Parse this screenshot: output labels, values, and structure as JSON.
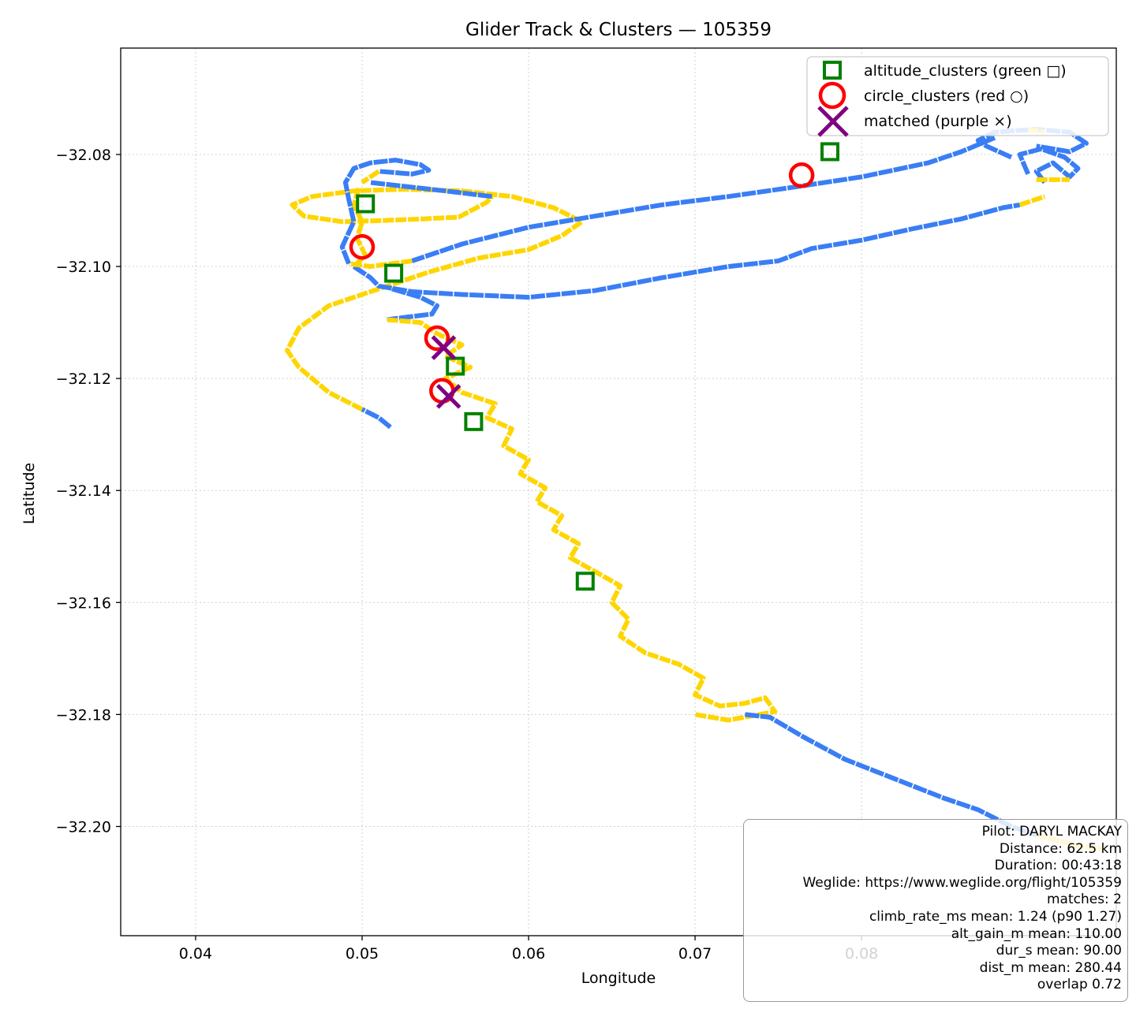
{
  "chart_data": {
    "type": "line",
    "title": "Glider Track & Clusters — 105359",
    "xlabel": "Longitude",
    "ylabel": "Latitude",
    "xlim": [
      0.0355,
      0.0953
    ],
    "ylim": [
      -32.2195,
      -32.061
    ],
    "xticks": [
      0.04,
      0.05,
      0.06,
      0.07,
      0.08
    ],
    "xtick_labels": [
      "0.04",
      "0.05",
      "0.06",
      "0.07",
      "0.08"
    ],
    "yticks": [
      -32.08,
      -32.1,
      -32.12,
      -32.14,
      -32.16,
      -32.18,
      -32.2
    ],
    "ytick_labels": [
      "−32.08",
      "−32.10",
      "−32.12",
      "−32.14",
      "−32.16",
      "−32.18",
      "−32.20"
    ],
    "grid": true,
    "legend_position": "top-right",
    "legend": [
      {
        "label": "altitude_clusters (green □)",
        "marker": "square",
        "color": "#008000"
      },
      {
        "label": "circle_clusters (red ○)",
        "marker": "circle",
        "color": "#ff0000"
      },
      {
        "label": "matched (purple ×)",
        "marker": "x",
        "color": "#800080"
      }
    ],
    "colors": {
      "cruise": "#3a7ef5",
      "climb": "#ffd500",
      "altitude": "#008000",
      "circle": "#ff0000",
      "matched": "#800080"
    },
    "track": [
      {
        "segment": "cruise",
        "points": [
          [
            0.0517,
            -32.1287
          ],
          [
            0.051,
            -32.127
          ],
          [
            0.05,
            -32.1255
          ]
        ]
      },
      {
        "segment": "climb",
        "points": [
          [
            0.05,
            -32.1255
          ],
          [
            0.048,
            -32.1225
          ],
          [
            0.0462,
            -32.118
          ],
          [
            0.0455,
            -32.115
          ],
          [
            0.0462,
            -32.111
          ],
          [
            0.048,
            -32.107
          ],
          [
            0.051,
            -32.104
          ],
          [
            0.054,
            -32.101
          ],
          [
            0.057,
            -32.0985
          ],
          [
            0.06,
            -32.097
          ],
          [
            0.062,
            -32.0945
          ],
          [
            0.0632,
            -32.092
          ],
          [
            0.0615,
            -32.0895
          ],
          [
            0.059,
            -32.0875
          ],
          [
            0.056,
            -32.0865
          ],
          [
            0.0525,
            -32.0862
          ],
          [
            0.0495,
            -32.0865
          ],
          [
            0.047,
            -32.0875
          ],
          [
            0.0458,
            -32.089
          ],
          [
            0.0465,
            -32.091
          ],
          [
            0.0488,
            -32.092
          ],
          [
            0.0512,
            -32.0918
          ],
          [
            0.0536,
            -32.0915
          ],
          [
            0.0558,
            -32.0912
          ],
          [
            0.0575,
            -32.0885
          ],
          [
            0.0578,
            -32.0875
          ]
        ]
      },
      {
        "segment": "cruise",
        "points": [
          [
            0.0578,
            -32.0875
          ],
          [
            0.055,
            -32.0865
          ],
          [
            0.052,
            -32.0855
          ],
          [
            0.0505,
            -32.085
          ]
        ]
      },
      {
        "segment": "climb",
        "points": [
          [
            0.0498,
            -32.086
          ],
          [
            0.0495,
            -32.089
          ],
          [
            0.05,
            -32.092
          ],
          [
            0.0497,
            -32.095
          ],
          [
            0.0502,
            -32.098
          ],
          [
            0.0495,
            -32.1
          ]
        ]
      },
      {
        "segment": "cruise",
        "points": [
          [
            0.0495,
            -32.1
          ],
          [
            0.0505,
            -32.102
          ],
          [
            0.051,
            -32.1035
          ],
          [
            0.053,
            -32.1045
          ],
          [
            0.056,
            -32.105
          ],
          [
            0.06,
            -32.1055
          ],
          [
            0.064,
            -32.1043
          ],
          [
            0.068,
            -32.102
          ],
          [
            0.072,
            -32.1
          ],
          [
            0.075,
            -32.099
          ],
          [
            0.077,
            -32.0968
          ],
          [
            0.08,
            -32.0953
          ],
          [
            0.083,
            -32.0933
          ],
          [
            0.086,
            -32.0915
          ],
          [
            0.0885,
            -32.0895
          ],
          [
            0.0895,
            -32.089
          ]
        ]
      },
      {
        "segment": "climb",
        "points": [
          [
            0.0895,
            -32.089
          ],
          [
            0.091,
            -32.0875
          ]
        ]
      },
      {
        "segment": "cruise",
        "points": [
          [
            0.091,
            -32.085
          ],
          [
            0.0905,
            -32.083
          ],
          [
            0.0915,
            -32.0815
          ],
          [
            0.0925,
            -32.084
          ],
          [
            0.093,
            -32.0825
          ],
          [
            0.0922,
            -32.0805
          ],
          [
            0.0908,
            -32.079
          ],
          [
            0.0895,
            -32.08
          ],
          [
            0.09,
            -32.0835
          ]
        ]
      },
      {
        "segment": "climb",
        "points": [
          [
            0.0905,
            -32.0845
          ],
          [
            0.0925,
            -32.0845
          ]
        ]
      },
      {
        "segment": "cruise",
        "points": [
          [
            0.089,
            -32.0805
          ],
          [
            0.0875,
            -32.0785
          ],
          [
            0.087,
            -32.0775
          ],
          [
            0.088,
            -32.076
          ],
          [
            0.0905,
            -32.0755
          ],
          [
            0.0925,
            -32.076
          ],
          [
            0.0935,
            -32.078
          ],
          [
            0.0925,
            -32.0795
          ],
          [
            0.0905,
            -32.0785
          ]
        ]
      },
      {
        "segment": "climb",
        "points": [
          [
            0.09,
            -32.0755
          ],
          [
            0.091,
            -32.076
          ]
        ]
      },
      {
        "segment": "cruise",
        "points": [
          [
            0.088,
            -32.077
          ],
          [
            0.086,
            -32.0795
          ],
          [
            0.084,
            -32.0815
          ],
          [
            0.08,
            -32.084
          ],
          [
            0.076,
            -32.0858
          ],
          [
            0.072,
            -32.0875
          ],
          [
            0.068,
            -32.089
          ],
          [
            0.064,
            -32.091
          ],
          [
            0.06,
            -32.093
          ],
          [
            0.056,
            -32.096
          ],
          [
            0.053,
            -32.099
          ]
        ]
      },
      {
        "segment": "climb",
        "points": [
          [
            0.053,
            -32.099
          ],
          [
            0.0505,
            -32.1
          ],
          [
            0.0492,
            -32.0995
          ]
        ]
      },
      {
        "segment": "cruise",
        "points": [
          [
            0.0492,
            -32.0995
          ],
          [
            0.0488,
            -32.0965
          ],
          [
            0.0495,
            -32.092
          ],
          [
            0.0492,
            -32.088
          ],
          [
            0.049,
            -32.085
          ],
          [
            0.0495,
            -32.0825
          ],
          [
            0.0505,
            -32.0815
          ],
          [
            0.052,
            -32.081
          ],
          [
            0.0535,
            -32.0818
          ],
          [
            0.054,
            -32.0828
          ],
          [
            0.053,
            -32.0835
          ],
          [
            0.051,
            -32.083
          ]
        ]
      },
      {
        "segment": "climb",
        "points": [
          [
            0.051,
            -32.083
          ],
          [
            0.05,
            -32.085
          ]
        ]
      },
      {
        "segment": "cruise",
        "points": [
          [
            0.0518,
            -32.104
          ],
          [
            0.0535,
            -32.1055
          ],
          [
            0.0545,
            -32.107
          ],
          [
            0.0542,
            -32.1085
          ],
          [
            0.0528,
            -32.109
          ],
          [
            0.0515,
            -32.1095
          ]
        ]
      },
      {
        "segment": "climb",
        "points": [
          [
            0.0515,
            -32.1095
          ],
          [
            0.0535,
            -32.11
          ],
          [
            0.0545,
            -32.112
          ],
          [
            0.056,
            -32.114
          ],
          [
            0.055,
            -32.116
          ],
          [
            0.0565,
            -32.118
          ],
          [
            0.055,
            -32.12
          ],
          [
            0.056,
            -32.1225
          ],
          [
            0.058,
            -32.1245
          ],
          [
            0.0575,
            -32.127
          ],
          [
            0.059,
            -32.129
          ],
          [
            0.0585,
            -32.132
          ],
          [
            0.06,
            -32.1345
          ],
          [
            0.0595,
            -32.137
          ],
          [
            0.061,
            -32.1395
          ],
          [
            0.0605,
            -32.142
          ],
          [
            0.062,
            -32.1445
          ],
          [
            0.0615,
            -32.147
          ],
          [
            0.063,
            -32.1495
          ],
          [
            0.0625,
            -32.152
          ],
          [
            0.064,
            -32.1545
          ],
          [
            0.0655,
            -32.157
          ],
          [
            0.065,
            -32.16
          ],
          [
            0.066,
            -32.163
          ],
          [
            0.0655,
            -32.166
          ],
          [
            0.067,
            -32.169
          ],
          [
            0.069,
            -32.171
          ],
          [
            0.0705,
            -32.1735
          ],
          [
            0.07,
            -32.1765
          ],
          [
            0.0715,
            -32.1785
          ],
          [
            0.073,
            -32.178
          ],
          [
            0.0742,
            -32.177
          ],
          [
            0.0748,
            -32.1795
          ],
          [
            0.072,
            -32.181
          ],
          [
            0.07,
            -32.18
          ]
        ]
      },
      {
        "segment": "cruise",
        "points": [
          [
            0.073,
            -32.18
          ],
          [
            0.0745,
            -32.1805
          ],
          [
            0.0765,
            -32.184
          ],
          [
            0.079,
            -32.188
          ],
          [
            0.082,
            -32.1915
          ],
          [
            0.085,
            -32.195
          ],
          [
            0.087,
            -32.197
          ],
          [
            0.089,
            -32.2
          ],
          [
            0.0905,
            -32.2015
          ]
        ]
      },
      {
        "segment": "climb",
        "points": [
          [
            0.0905,
            -32.2015
          ],
          [
            0.093,
            -32.2035
          ],
          [
            0.0945,
            -32.204
          ]
        ]
      }
    ],
    "altitude_clusters": [
      [
        0.0502,
        -32.0888
      ],
      [
        0.0519,
        -32.1012
      ],
      [
        0.0556,
        -32.1178
      ],
      [
        0.0567,
        -32.1277
      ],
      [
        0.0634,
        -32.1562
      ],
      [
        0.0781,
        -32.0795
      ]
    ],
    "circle_clusters": [
      [
        0.05,
        -32.0965
      ],
      [
        0.0545,
        -32.1128
      ],
      [
        0.0548,
        -32.1222
      ],
      [
        0.0764,
        -32.0837
      ]
    ],
    "matched": [
      [
        0.0549,
        -32.1145
      ],
      [
        0.0552,
        -32.1232
      ]
    ],
    "stats": [
      "Pilot: DARYL MACKAY",
      "Distance: 62.5 km",
      "Duration: 00:43:18",
      "Weglide: https://www.weglide.org/flight/105359",
      "matches: 2",
      "climb_rate_ms mean: 1.24 (p90 1.27)",
      "alt_gain_m mean: 110.00",
      "dur_s mean: 90.00",
      "dist_m mean: 280.44",
      "overlap 0.72"
    ]
  }
}
